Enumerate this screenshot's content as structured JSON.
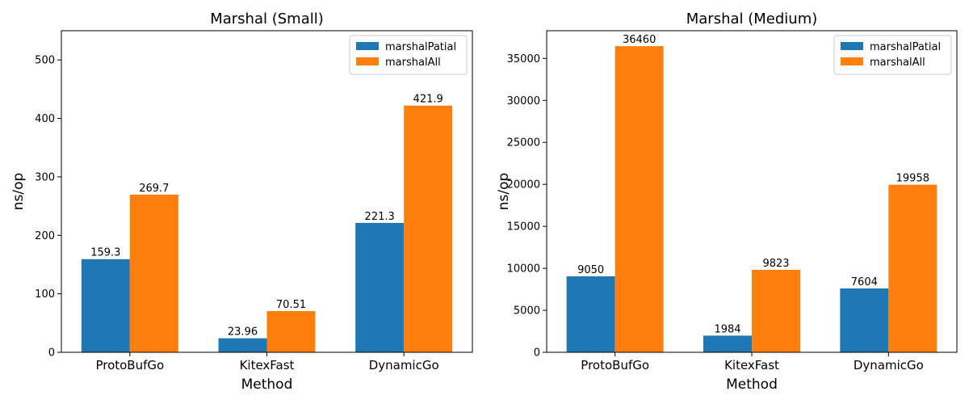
{
  "colors": {
    "marshalPatial": "#1f77b4",
    "marshalAll": "#ff7f0e"
  },
  "chart_data": [
    {
      "type": "bar",
      "title": "Marshal (Small)",
      "xlabel": "Method",
      "ylabel": "ns/op",
      "categories": [
        "ProtoBufGo",
        "KitexFast",
        "DynamicGo"
      ],
      "series": [
        {
          "name": "marshalPatial",
          "values": [
            159.3,
            23.96,
            221.3
          ],
          "labels": [
            "159.3",
            "23.96",
            "221.3"
          ]
        },
        {
          "name": "marshalAll",
          "values": [
            269.7,
            70.51,
            421.9
          ],
          "labels": [
            "269.7",
            "70.51",
            "421.9"
          ]
        }
      ],
      "ylim": [
        0,
        550
      ],
      "yticks": [
        0,
        100,
        200,
        300,
        400,
        500
      ],
      "legend": "top-right",
      "grid": false
    },
    {
      "type": "bar",
      "title": "Marshal (Medium)",
      "xlabel": "Method",
      "ylabel": "ns/op",
      "categories": [
        "ProtoBufGo",
        "KitexFast",
        "DynamicGo"
      ],
      "series": [
        {
          "name": "marshalPatial",
          "values": [
            9050,
            1984,
            7604
          ],
          "labels": [
            "9050",
            "1984",
            "7604"
          ]
        },
        {
          "name": "marshalAll",
          "values": [
            36460,
            9823,
            19958
          ],
          "labels": [
            "36460",
            "9823",
            "19958"
          ]
        }
      ],
      "ylim": [
        0,
        38300
      ],
      "yticks": [
        0,
        5000,
        10000,
        15000,
        20000,
        25000,
        30000,
        35000
      ],
      "legend": "top-right",
      "grid": false
    }
  ]
}
